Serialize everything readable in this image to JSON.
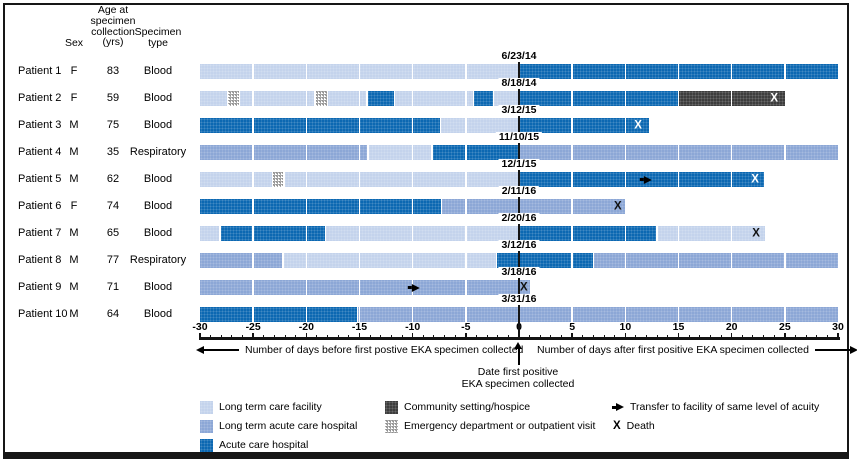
{
  "colors": {
    "ltcf": "#c4d3ec",
    "ltach": "#8ca7d6",
    "ach": "#0c68b2",
    "hospice": "#3d3d3d",
    "line": "#141414"
  },
  "table_headers": {
    "sex": "Sex",
    "age": "Age at\nspecimen\ncollection\n(yrs)",
    "specimen": "Specimen\ntype"
  },
  "chart_data": {
    "type": "timeline",
    "x_axis": {
      "min": -30,
      "max": 30,
      "major_ticks": [
        -30,
        -25,
        -20,
        -15,
        -10,
        -5,
        0,
        5,
        10,
        15,
        20,
        25,
        30
      ],
      "minor_tick_step": 1,
      "left_label": "Number of days before first postive EKA specimen collected",
      "right_label": "Number of days after first positive EKA specimen collected",
      "zero_caption": "Date first positive\nEKA specimen collected"
    },
    "segment_types": {
      "ltcf": "Long term care facility",
      "ltach": "Long term acute care hospital",
      "ach": "Acute care hospital",
      "hospice": "Community setting/hospice",
      "ed": "Emergency department or outpatient visit"
    },
    "patients": [
      {
        "name": "Patient 1",
        "sex": "F",
        "age": "83",
        "specimen": "Blood",
        "date": "6/23/14",
        "segments": [
          {
            "type": "ltcf",
            "start": -30,
            "end": 0
          },
          {
            "type": "ach",
            "start": 0,
            "end": 30
          }
        ],
        "markers": []
      },
      {
        "name": "Patient 2",
        "sex": "F",
        "age": "59",
        "specimen": "Blood",
        "date": "8/18/14",
        "segments": [
          {
            "type": "ltcf",
            "start": -30,
            "end": -27.4
          },
          {
            "type": "ed",
            "start": -27.4,
            "end": -26.3
          },
          {
            "type": "ltcf",
            "start": -26.3,
            "end": -19.2
          },
          {
            "type": "ed",
            "start": -19.2,
            "end": -18
          },
          {
            "type": "ltcf",
            "start": -18,
            "end": -14.3
          },
          {
            "type": "ach",
            "start": -14.3,
            "end": -11.7
          },
          {
            "type": "ltcf",
            "start": -11.7,
            "end": -4.3
          },
          {
            "type": "ach",
            "start": -4.3,
            "end": -2.4
          },
          {
            "type": "ltcf",
            "start": -2.4,
            "end": 0
          },
          {
            "type": "ach",
            "start": 0,
            "end": 15
          },
          {
            "type": "hospice",
            "start": 15,
            "end": 25
          }
        ],
        "markers": [
          {
            "kind": "death",
            "day": 24,
            "style": "light"
          }
        ]
      },
      {
        "name": "Patient 3",
        "sex": "M",
        "age": "75",
        "specimen": "Blood",
        "date": "3/12/15",
        "segments": [
          {
            "type": "ach",
            "start": -30,
            "end": -7.4
          },
          {
            "type": "ltcf",
            "start": -7.4,
            "end": 0
          },
          {
            "type": "ach",
            "start": 0,
            "end": 12.2
          }
        ],
        "markers": [
          {
            "kind": "death",
            "day": 11.2,
            "style": "light"
          }
        ]
      },
      {
        "name": "Patient 4",
        "sex": "M",
        "age": "35",
        "specimen": "Respiratory",
        "date": "11/10/15",
        "segments": [
          {
            "type": "ltach",
            "start": -30,
            "end": -14.2
          },
          {
            "type": "ltcf",
            "start": -14.2,
            "end": -8.2
          },
          {
            "type": "ach",
            "start": -8.2,
            "end": 0
          },
          {
            "type": "ltach",
            "start": 0,
            "end": 30
          }
        ],
        "markers": []
      },
      {
        "name": "Patient 5",
        "sex": "M",
        "age": "62",
        "specimen": "Blood",
        "date": "12/1/15",
        "segments": [
          {
            "type": "ltcf",
            "start": -30,
            "end": -23.2
          },
          {
            "type": "ed",
            "start": -23.2,
            "end": -22.1
          },
          {
            "type": "ltcf",
            "start": -22.1,
            "end": 0
          },
          {
            "type": "ach",
            "start": 0,
            "end": 23
          }
        ],
        "markers": [
          {
            "kind": "transfer",
            "day": 12
          },
          {
            "kind": "death",
            "day": 22.2,
            "style": "light"
          }
        ]
      },
      {
        "name": "Patient 6",
        "sex": "F",
        "age": "74",
        "specimen": "Blood",
        "date": "2/11/16",
        "segments": [
          {
            "type": "ach",
            "start": -30,
            "end": -7.3
          },
          {
            "type": "ltach",
            "start": -7.3,
            "end": 10
          }
        ],
        "markers": [
          {
            "kind": "death",
            "day": 9.3,
            "style": "dark"
          }
        ]
      },
      {
        "name": "Patient 7",
        "sex": "M",
        "age": "65",
        "specimen": "Blood",
        "date": "2/20/16",
        "segments": [
          {
            "type": "ltcf",
            "start": -30,
            "end": -28.1
          },
          {
            "type": "ach",
            "start": -28.1,
            "end": -18.2
          },
          {
            "type": "ltcf",
            "start": -18.2,
            "end": 0
          },
          {
            "type": "ach",
            "start": 0,
            "end": 13
          },
          {
            "type": "ltcf",
            "start": 13,
            "end": 23.1
          }
        ],
        "markers": [
          {
            "kind": "death",
            "day": 22.3,
            "style": "dark"
          }
        ]
      },
      {
        "name": "Patient 8",
        "sex": "M",
        "age": "77",
        "specimen": "Respiratory",
        "date": "3/12/16",
        "segments": [
          {
            "type": "ltach",
            "start": -30,
            "end": -22.2
          },
          {
            "type": "ltcf",
            "start": -22.2,
            "end": -2.1
          },
          {
            "type": "ach",
            "start": -2.1,
            "end": 7
          },
          {
            "type": "ltach",
            "start": 7,
            "end": 30
          }
        ],
        "markers": []
      },
      {
        "name": "Patient 9",
        "sex": "M",
        "age": "71",
        "specimen": "Blood",
        "date": "3/18/16",
        "segments": [
          {
            "type": "ltach",
            "start": -30,
            "end": 1
          }
        ],
        "markers": [
          {
            "kind": "transfer",
            "day": -9.8
          },
          {
            "kind": "death",
            "day": 0.45,
            "style": "dark"
          }
        ]
      },
      {
        "name": "Patient 10",
        "sex": "M",
        "age": "64",
        "specimen": "Blood",
        "date": "3/31/16",
        "segments": [
          {
            "type": "ach",
            "start": -30,
            "end": -15.2
          },
          {
            "type": "ltach",
            "start": -15.2,
            "end": 30
          }
        ],
        "markers": []
      }
    ]
  },
  "legend": {
    "items": [
      {
        "type": "ltcf",
        "label": "Long term care facility"
      },
      {
        "type": "ltach",
        "label": "Long term acute care hospital"
      },
      {
        "type": "ach",
        "label": "Acute care hospital"
      },
      {
        "type": "hospice",
        "label": "Community setting/hospice"
      },
      {
        "type": "ed",
        "label": "Emergency department or outpatient visit"
      }
    ],
    "markers": [
      {
        "glyph": "arrow",
        "label": "Transfer to facility of same level of acuity"
      },
      {
        "glyph": "X",
        "label": "Death"
      }
    ]
  }
}
